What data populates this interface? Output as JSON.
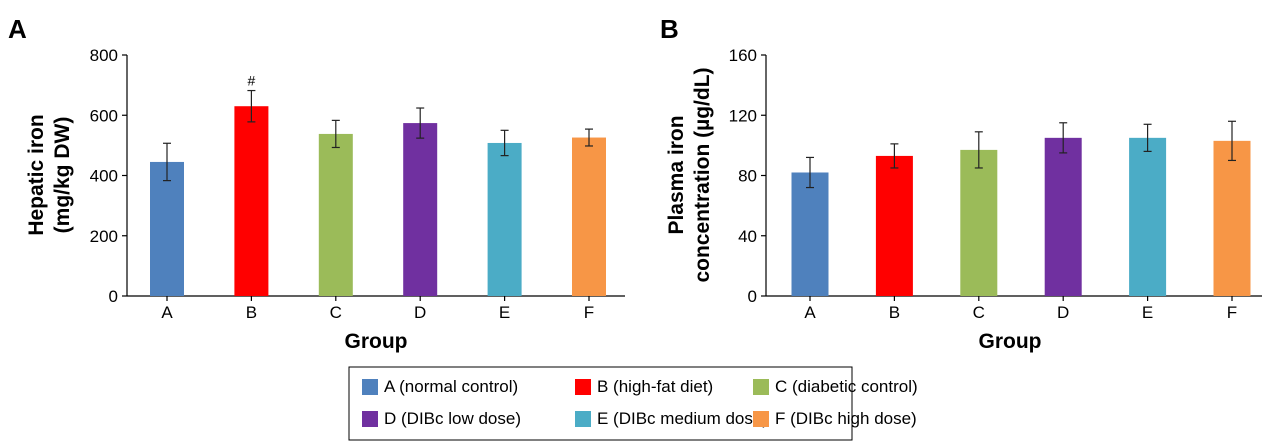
{
  "chart_data": [
    {
      "type": "bar",
      "panel_label": "A",
      "categories": [
        "A",
        "B",
        "C",
        "D",
        "E",
        "F"
      ],
      "values": [
        445,
        630,
        538,
        574,
        508,
        526
      ],
      "errors": [
        62,
        52,
        45,
        50,
        42,
        28
      ],
      "colors": [
        "#4f81bd",
        "#ff0000",
        "#9bbb59",
        "#7030a0",
        "#4bacc6",
        "#f79646"
      ],
      "annotations": [
        {
          "category": "B",
          "text": "#"
        }
      ],
      "xlabel": "Group",
      "ylabel": [
        "Hepatic iron",
        "(mg/kg DW)"
      ],
      "ylim": [
        0,
        800
      ],
      "yticks": [
        0,
        200,
        400,
        600,
        800
      ],
      "grid": false
    },
    {
      "type": "bar",
      "panel_label": "B",
      "categories": [
        "A",
        "B",
        "C",
        "D",
        "E",
        "F"
      ],
      "values": [
        82,
        93,
        97,
        105,
        105,
        103
      ],
      "errors": [
        10,
        8,
        12,
        10,
        9,
        13
      ],
      "colors": [
        "#4f81bd",
        "#ff0000",
        "#9bbb59",
        "#7030a0",
        "#4bacc6",
        "#f79646"
      ],
      "annotations": [],
      "xlabel": "Group",
      "ylabel": [
        "Plasma iron",
        "concentration (µg/dL)"
      ],
      "ylim": [
        0,
        160
      ],
      "yticks": [
        0,
        40,
        80,
        120,
        160
      ],
      "grid": false
    }
  ],
  "legend": {
    "placement": "bottom-center",
    "items": [
      {
        "label": "A (normal control)",
        "color": "#4f81bd"
      },
      {
        "label": "B (high-fat diet)",
        "color": "#ff0000"
      },
      {
        "label": "C (diabetic control)",
        "color": "#9bbb59"
      },
      {
        "label": "D (DIBc low dose)",
        "color": "#7030a0"
      },
      {
        "label": "E (DIBc medium dose)",
        "color": "#4bacc6"
      },
      {
        "label": "F (DIBc high dose)",
        "color": "#f79646"
      }
    ]
  }
}
